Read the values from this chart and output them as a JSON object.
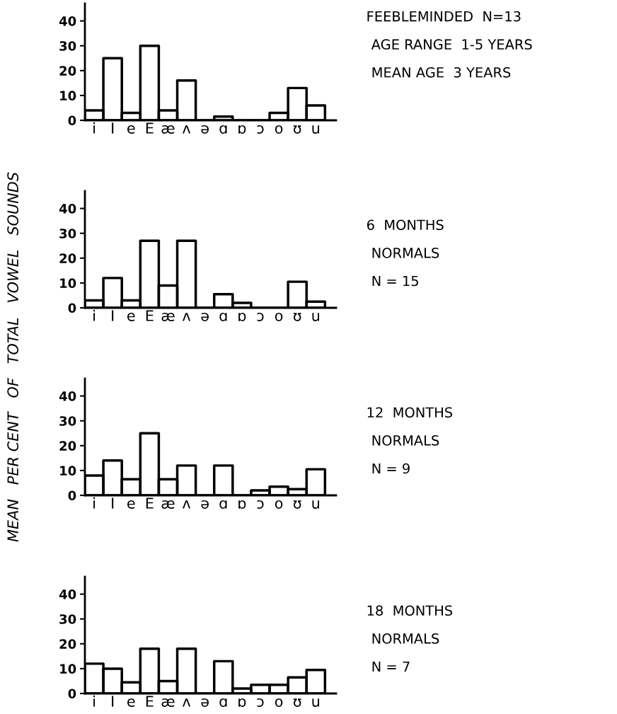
{
  "chart_data": [
    {
      "type": "bar",
      "ylabel": "MEAN   PER CENT   OF   TOTAL   VOWEL   SOUNDS",
      "categories": [
        "i",
        "I",
        "e",
        "E",
        "æ",
        "ʌ",
        "ə",
        "ɑ",
        "ɒ",
        "ɔ",
        "o",
        "ʊ",
        "u"
      ],
      "color": "#000000",
      "values": [
        4,
        25,
        3,
        30,
        4,
        16,
        0,
        1.5,
        0,
        0,
        3,
        13,
        6
      ],
      "ylim": [
        0,
        47
      ],
      "yticks": [
        0,
        10,
        20,
        30,
        40
      ],
      "grid": false,
      "annotations": [
        "FEEBLEMINDED  N=13",
        "AGE RANGE  1-5 YEARS",
        "MEAN AGE  3 YEARS"
      ]
    },
    {
      "type": "bar",
      "categories": [
        "i",
        "I",
        "e",
        "E",
        "æ",
        "ʌ",
        "ə",
        "ɑ",
        "ɒ",
        "ɔ",
        "o",
        "ʊ",
        "u"
      ],
      "color": "#000000",
      "values": [
        3,
        12,
        3,
        27,
        9,
        27,
        0,
        5.5,
        2,
        0,
        0,
        10.5,
        2.5
      ],
      "ylim": [
        0,
        47
      ],
      "yticks": [
        0,
        10,
        20,
        30,
        40
      ],
      "grid": false,
      "annotations": [
        "6  MONTHS",
        "NORMALS",
        "N = 15"
      ]
    },
    {
      "type": "bar",
      "categories": [
        "i",
        "I",
        "e",
        "E",
        "æ",
        "ʌ",
        "ə",
        "ɑ",
        "ɒ",
        "ɔ",
        "o",
        "ʊ",
        "u"
      ],
      "color": "#000000",
      "values": [
        8,
        14,
        6.5,
        25,
        6.5,
        12,
        0,
        12,
        0,
        2,
        3.5,
        2.5,
        10.5
      ],
      "ylim": [
        0,
        47
      ],
      "yticks": [
        0,
        10,
        20,
        30,
        40
      ],
      "grid": false,
      "annotations": [
        "12  MONTHS",
        "NORMALS",
        "N = 9"
      ]
    },
    {
      "type": "bar",
      "categories": [
        "i",
        "I",
        "e",
        "E",
        "æ",
        "ʌ",
        "ə",
        "ɑ",
        "ɒ",
        "ɔ",
        "o",
        "ʊ",
        "u"
      ],
      "color": "#000000",
      "values": [
        12,
        10,
        4.5,
        18,
        5,
        18,
        0,
        13,
        2,
        3.5,
        3.5,
        6.5,
        9.5
      ],
      "ylim": [
        0,
        47
      ],
      "yticks": [
        0,
        10,
        20,
        30,
        40
      ],
      "grid": false,
      "annotations": [
        "18  MONTHS",
        "NORMALS",
        "N = 7"
      ]
    }
  ]
}
